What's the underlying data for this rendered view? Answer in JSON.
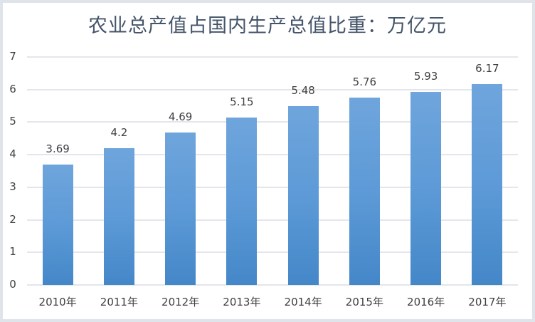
{
  "chart_data": {
    "type": "bar",
    "title": "农业总产值占国内生产总值比重：万亿元",
    "categories": [
      "2010年",
      "2011年",
      "2012年",
      "2013年",
      "2014年",
      "2015年",
      "2016年",
      "2017年"
    ],
    "values": [
      3.69,
      4.2,
      4.69,
      5.15,
      5.48,
      5.76,
      5.93,
      6.17
    ],
    "data_labels": [
      "3.69",
      "4.2",
      "4.69",
      "5.15",
      "5.48",
      "5.76",
      "5.93",
      "6.17"
    ],
    "xlabel": "",
    "ylabel": "",
    "ylim": [
      0,
      7
    ],
    "yticks": [
      "0",
      "1",
      "2",
      "3",
      "4",
      "5",
      "6",
      "7"
    ],
    "grid": true,
    "legend": "none",
    "bar_color": "#5b9bd5"
  }
}
